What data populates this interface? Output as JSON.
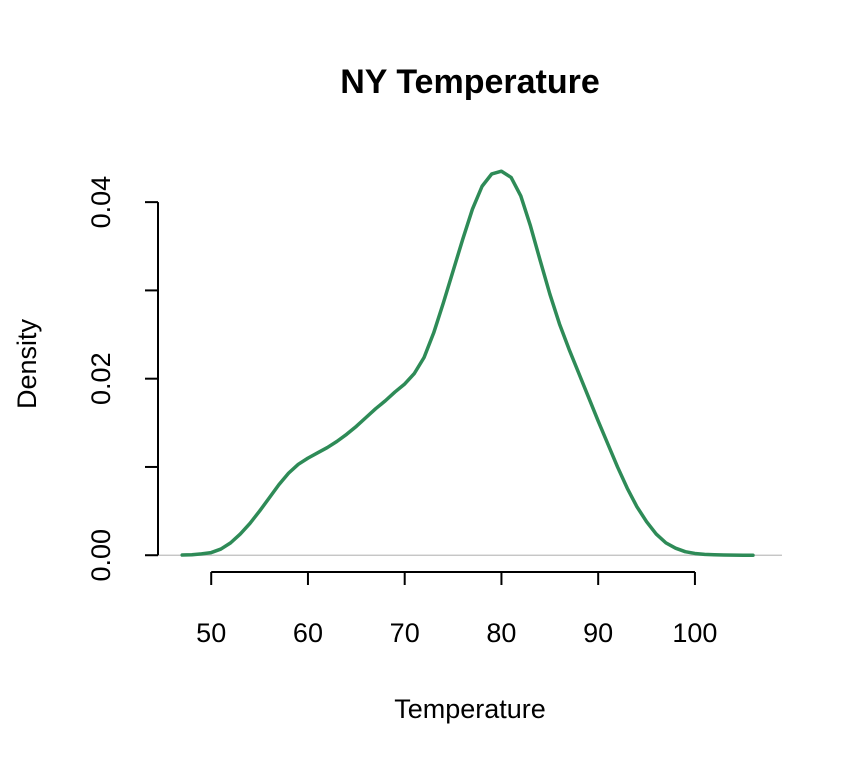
{
  "chart_data": {
    "type": "line",
    "title": "NY Temperature",
    "xlabel": "Temperature",
    "ylabel": "Density",
    "xlim": [
      44.5,
      109
    ],
    "ylim": [
      -0.0019,
      0.045
    ],
    "x_ticks": [
      50,
      60,
      70,
      80,
      90,
      100
    ],
    "x_tick_labels": [
      "50",
      "60",
      "70",
      "80",
      "90",
      "100"
    ],
    "y_ticks": [
      0.0,
      0.01,
      0.02,
      0.03,
      0.04
    ],
    "y_tick_labels": [
      "0.00",
      "",
      "0.02",
      "",
      "0.04"
    ],
    "grid": false,
    "baseline": 0,
    "colors": {
      "line": "#2e8b57",
      "axis": "#000000",
      "baseline": "#bebebe"
    },
    "series": [
      {
        "x": [
          47,
          48,
          49,
          50,
          51,
          52,
          53,
          54,
          55,
          56,
          57,
          58,
          59,
          60,
          61,
          62,
          63,
          64,
          65,
          66,
          67,
          68,
          69,
          70,
          71,
          72,
          73,
          74,
          75,
          76,
          77,
          78,
          79,
          80,
          81,
          82,
          83,
          84,
          85,
          86,
          87,
          88,
          89,
          90,
          91,
          92,
          93,
          94,
          95,
          96,
          97,
          98,
          99,
          100,
          101,
          102,
          103,
          104,
          105,
          106
        ],
        "y": [
          2e-05,
          6e-05,
          0.00015,
          0.0003,
          0.0007,
          0.0014,
          0.0024,
          0.0036,
          0.005,
          0.0065,
          0.008,
          0.0093,
          0.0103,
          0.011,
          0.0116,
          0.0122,
          0.0129,
          0.0137,
          0.0146,
          0.0156,
          0.0166,
          0.0175,
          0.0185,
          0.0194,
          0.0206,
          0.0224,
          0.0252,
          0.0286,
          0.0322,
          0.0358,
          0.0392,
          0.0418,
          0.0432,
          0.0435,
          0.0428,
          0.0407,
          0.0373,
          0.0334,
          0.0296,
          0.0262,
          0.0233,
          0.0206,
          0.0179,
          0.0152,
          0.0126,
          0.01,
          0.0076,
          0.0055,
          0.0038,
          0.0024,
          0.0014,
          0.0008,
          0.0004,
          0.0002,
          0.0001,
          5e-05,
          2e-05,
          1e-05,
          0.0,
          0.0
        ]
      }
    ]
  }
}
